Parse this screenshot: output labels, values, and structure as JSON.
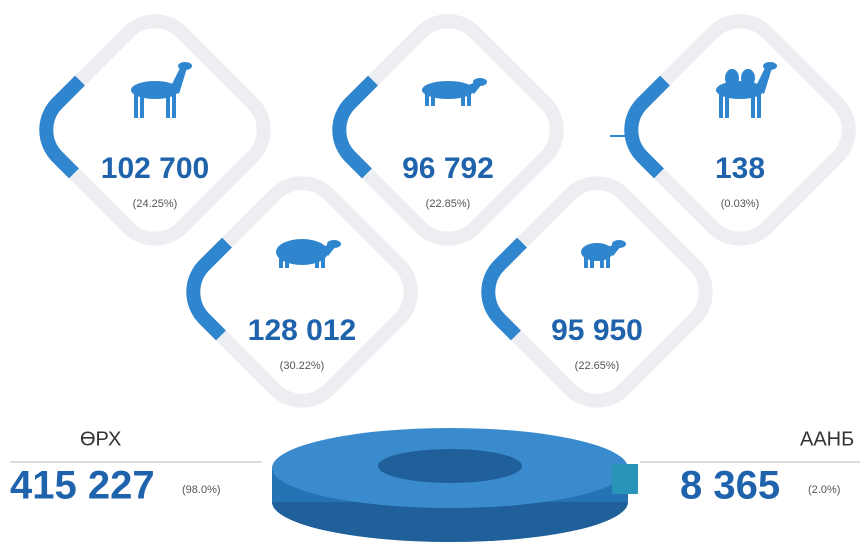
{
  "tiles": [
    {
      "count": "102 700",
      "share": "(24.25%)"
    },
    {
      "count": "96 792",
      "share": "(22.85%)"
    },
    {
      "count": "138",
      "share": "(0.03%)"
    },
    {
      "count": "128 012",
      "share": "(30.22%)"
    },
    {
      "count": "95 950",
      "share": "(22.65%)"
    }
  ],
  "totals": {
    "left": {
      "label": "ӨРХ",
      "count": "415 227",
      "share": "(98.0%)"
    },
    "right": {
      "label": "ААНБ",
      "count": "8 365",
      "share": "(2.0%)"
    }
  }
}
